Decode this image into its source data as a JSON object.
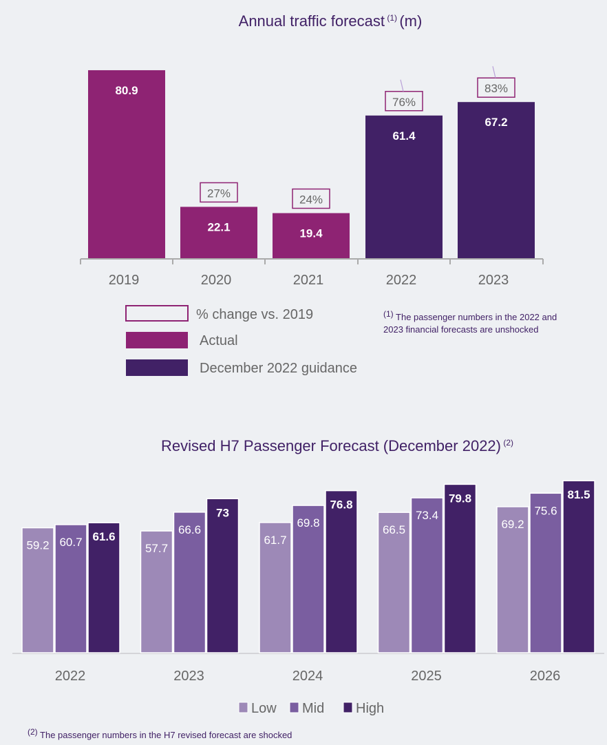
{
  "chart_data": [
    {
      "type": "bar",
      "title": "Annual traffic forecast",
      "title_sup": "(1)",
      "title_unit": "(m)",
      "categories": [
        "2019",
        "2020",
        "2021",
        "2022",
        "2023"
      ],
      "values": [
        80.9,
        22.1,
        19.4,
        61.4,
        67.2
      ],
      "value_labels": [
        "80.9",
        "22.1",
        "19.4",
        "61.4",
        "67.2"
      ],
      "series_of_bar": [
        "Actual",
        "Actual",
        "Actual",
        "December 2022 guidance",
        "December 2022 guidance"
      ],
      "pct_change_labels": [
        null,
        "27%",
        "24%",
        "76%",
        "83%"
      ],
      "legend": [
        {
          "label": "% change vs. 2019",
          "style": "outline",
          "color": "#8e2373"
        },
        {
          "label": "Actual",
          "color": "#8e2373"
        },
        {
          "label": "December 2022 guidance",
          "color": "#412166"
        }
      ],
      "legend_placement": "bottom",
      "footnote_sup": "(1)",
      "footnote_line1": "The passenger numbers in the 2022 and",
      "footnote_line2": "2023 financial forecasts are unshocked",
      "ylim": [
        0,
        85
      ],
      "grid": false
    },
    {
      "type": "bar",
      "title": "Revised H7 Passenger Forecast (December 2022)",
      "title_sup": "(2)",
      "categories": [
        "2022",
        "2023",
        "2024",
        "2025",
        "2026"
      ],
      "series": [
        {
          "name": "Low",
          "color": "#9d89b7",
          "values": [
            59.2,
            57.7,
            61.7,
            66.5,
            69.2
          ]
        },
        {
          "name": "Mid",
          "color": "#7a5ea0",
          "values": [
            60.7,
            66.6,
            69.8,
            73.4,
            75.6
          ]
        },
        {
          "name": "High",
          "color": "#412166",
          "values": [
            61.6,
            73,
            76.8,
            79.8,
            81.5
          ]
        }
      ],
      "legend_placement": "bottom",
      "footnote_sup": "(2)",
      "footnote": "The passenger numbers in the H7 revised forecast are shocked",
      "ylim": [
        0,
        85
      ],
      "grid": false
    }
  ]
}
